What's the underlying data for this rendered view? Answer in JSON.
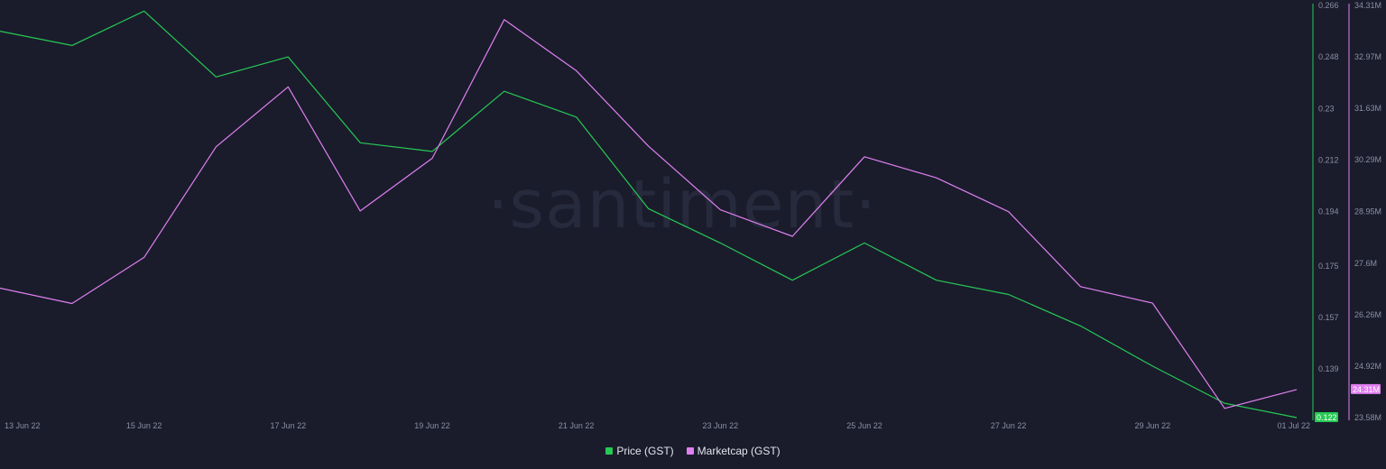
{
  "watermark": "·santiment·",
  "colors": {
    "background": "#1a1c2c",
    "price": "#26c953",
    "marketcap": "#e07ff0"
  },
  "legend": [
    {
      "label": "Price (GST)",
      "color": "#26c953"
    },
    {
      "label": "Marketcap (GST)",
      "color": "#e07ff0"
    }
  ],
  "chart_data": {
    "type": "line",
    "title": "",
    "grid": false,
    "legend_position": "bottom-center",
    "x_tick_labels": [
      "13 Jun 22",
      "15 Jun 22",
      "17 Jun 22",
      "19 Jun 22",
      "21 Jun 22",
      "23 Jun 22",
      "25 Jun 22",
      "27 Jun 22",
      "29 Jun 22",
      "01 Jul 22"
    ],
    "x": [
      "13 Jun 22",
      "14 Jun 22",
      "15 Jun 22",
      "16 Jun 22",
      "17 Jun 22",
      "18 Jun 22",
      "19 Jun 22",
      "20 Jun 22",
      "21 Jun 22",
      "22 Jun 22",
      "23 Jun 22",
      "24 Jun 22",
      "25 Jun 22",
      "26 Jun 22",
      "27 Jun 22",
      "28 Jun 22",
      "29 Jun 22",
      "30 Jun 22",
      "01 Jul 22"
    ],
    "axes": {
      "price": {
        "side": "right",
        "range": [
          0.122,
          0.266
        ],
        "ticks": [
          "0.266",
          "0.248",
          "0.23",
          "0.212",
          "0.194",
          "0.175",
          "0.157",
          "0.139"
        ],
        "tick_values": [
          0.266,
          0.248,
          0.23,
          0.212,
          0.194,
          0.175,
          0.157,
          0.139
        ],
        "current_label": "0.122"
      },
      "marketcap": {
        "side": "right",
        "range": [
          23.58,
          34.31
        ],
        "unit": "M",
        "ticks": [
          "34.31M",
          "32.97M",
          "31.63M",
          "30.29M",
          "28.95M",
          "27.6M",
          "26.26M",
          "24.92M",
          "23.58M"
        ],
        "tick_values": [
          34.31,
          32.97,
          31.63,
          30.29,
          28.95,
          27.6,
          26.26,
          24.92,
          23.58
        ],
        "current_label": "24.31M"
      }
    },
    "series": [
      {
        "name": "Price (GST)",
        "axis": "price",
        "values": [
          0.257,
          0.252,
          0.264,
          0.241,
          0.248,
          0.218,
          0.215,
          0.236,
          0.227,
          0.195,
          0.183,
          0.17,
          0.183,
          0.17,
          0.165,
          0.154,
          0.14,
          0.127,
          0.122
        ]
      },
      {
        "name": "Marketcap (GST)",
        "axis": "marketcap",
        "values": [
          26.95,
          26.55,
          27.75,
          30.63,
          32.19,
          28.96,
          30.33,
          33.94,
          32.61,
          30.65,
          28.99,
          28.3,
          30.37,
          29.82,
          28.94,
          26.99,
          26.56,
          23.82,
          24.31
        ]
      }
    ]
  }
}
